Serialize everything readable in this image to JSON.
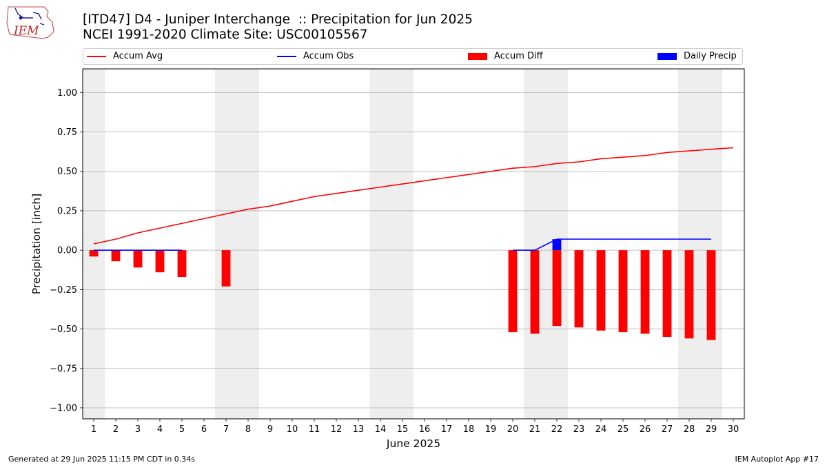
{
  "header": {
    "title_line1": "[ITD47] D4 - Juniper Interchange  :: Precipitation for Jun 2025",
    "title_line2": "NCEI 1991-2020 Climate Site: USC00105567"
  },
  "logo": {
    "text": "IEM"
  },
  "legend": [
    {
      "label": "Accum Avg",
      "kind": "line",
      "color": "#ff0000"
    },
    {
      "label": "Accum Obs",
      "kind": "line",
      "color": "#0000ff"
    },
    {
      "label": "Accum Diff",
      "kind": "patch",
      "color": "#ff0000"
    },
    {
      "label": "Daily Precip",
      "kind": "patch",
      "color": "#0000ff"
    }
  ],
  "footer": {
    "left": "Generated at 29 Jun 2025 11:15 PM CDT in 0.34s",
    "right": "IEM Autoplot App #17"
  },
  "chart_data": {
    "type": "bar",
    "title": "[ITD47] D4 - Juniper Interchange  :: Precipitation for Jun 2025",
    "xlabel": "June 2025",
    "ylabel": "Precipitation [inch]",
    "x": [
      1,
      2,
      3,
      4,
      5,
      6,
      7,
      8,
      9,
      10,
      11,
      12,
      13,
      14,
      15,
      16,
      17,
      18,
      19,
      20,
      21,
      22,
      23,
      24,
      25,
      26,
      27,
      28,
      29,
      30
    ],
    "xlim": [
      0.5,
      30.5
    ],
    "ylim": [
      -1.07,
      1.15
    ],
    "yticks": [
      -1.0,
      -0.75,
      -0.5,
      -0.25,
      0.0,
      0.25,
      0.5,
      0.75,
      1.0
    ],
    "grid": true,
    "legend_position": "top",
    "weekend_shading": [
      [
        0.5,
        1.5
      ],
      [
        6.5,
        8.5
      ],
      [
        13.5,
        15.5
      ],
      [
        20.5,
        22.5
      ],
      [
        27.5,
        29.5
      ]
    ],
    "series": [
      {
        "name": "Accum Avg",
        "type": "line",
        "color": "#ff0000",
        "x": [
          1,
          2,
          3,
          4,
          5,
          6,
          7,
          8,
          9,
          10,
          11,
          12,
          13,
          14,
          15,
          16,
          17,
          18,
          19,
          20,
          21,
          22,
          23,
          24,
          25,
          26,
          27,
          28,
          29,
          30
        ],
        "values": [
          0.04,
          0.07,
          0.11,
          0.14,
          0.17,
          0.2,
          0.23,
          0.26,
          0.28,
          0.31,
          0.34,
          0.36,
          0.38,
          0.4,
          0.42,
          0.44,
          0.46,
          0.48,
          0.5,
          0.52,
          0.53,
          0.55,
          0.56,
          0.58,
          0.59,
          0.6,
          0.62,
          0.63,
          0.64,
          0.65
        ]
      },
      {
        "name": "Accum Obs",
        "type": "line",
        "color": "#0000ff",
        "segments": [
          {
            "x": [
              1,
              2,
              3,
              4,
              5
            ],
            "values": [
              0,
              0,
              0,
              0,
              0
            ]
          },
          {
            "x": [
              20,
              21,
              22,
              23,
              24,
              25,
              26,
              27,
              28,
              29
            ],
            "values": [
              0,
              0,
              0.07,
              0.07,
              0.07,
              0.07,
              0.07,
              0.07,
              0.07,
              0.07
            ]
          }
        ]
      },
      {
        "name": "Accum Diff",
        "type": "bar",
        "color": "#ff0000",
        "x": [
          1,
          2,
          3,
          4,
          5,
          7,
          20,
          21,
          22,
          23,
          24,
          25,
          26,
          27,
          28,
          29
        ],
        "values": [
          -0.04,
          -0.07,
          -0.11,
          -0.14,
          -0.17,
          -0.23,
          -0.52,
          -0.53,
          -0.48,
          -0.49,
          -0.51,
          -0.52,
          -0.53,
          -0.55,
          -0.56,
          -0.57
        ]
      },
      {
        "name": "Daily Precip",
        "type": "bar",
        "color": "#0000ff",
        "x": [
          22
        ],
        "values": [
          0.07
        ]
      }
    ]
  }
}
